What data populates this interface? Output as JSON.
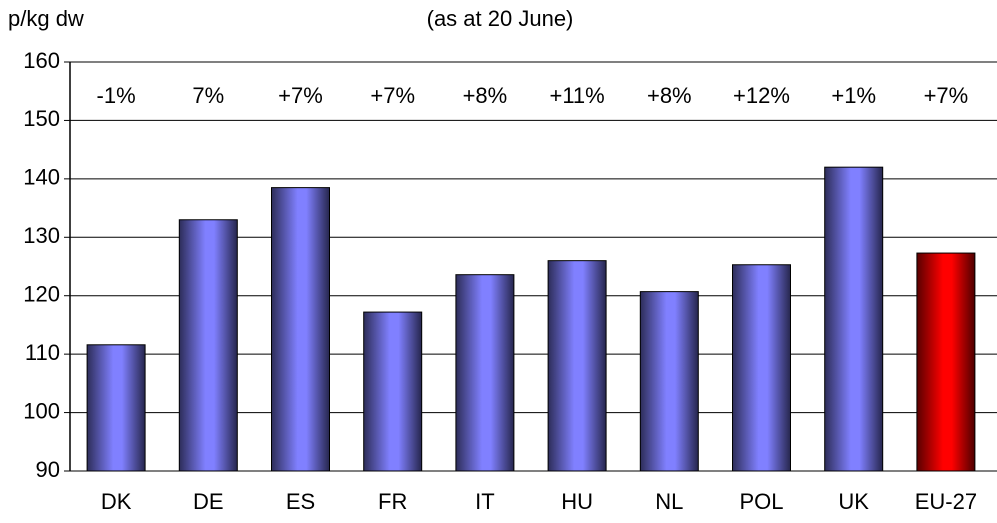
{
  "chart_data": {
    "type": "bar",
    "title": "(as at 20 June)",
    "y_label": "p/kg dw",
    "categories": [
      "DK",
      "DE",
      "ES",
      "FR",
      "IT",
      "HU",
      "NL",
      "POL",
      "UK",
      "EU-27"
    ],
    "values": [
      111.6,
      133,
      138.5,
      117.2,
      123.6,
      126,
      120.7,
      125.3,
      142,
      127.3
    ],
    "annotations": [
      "-1%",
      "7%",
      "+7%",
      "+7%",
      "+8%",
      "+11%",
      "+8%",
      "+12%",
      "+1%",
      "+7%"
    ],
    "colors": [
      "#8080ff",
      "#8080ff",
      "#8080ff",
      "#8080ff",
      "#8080ff",
      "#8080ff",
      "#8080ff",
      "#8080ff",
      "#8080ff",
      "#ff0000"
    ],
    "ylim": [
      90,
      160
    ],
    "yticks": [
      90,
      100,
      110,
      120,
      130,
      140,
      150,
      160
    ],
    "grid": true
  }
}
